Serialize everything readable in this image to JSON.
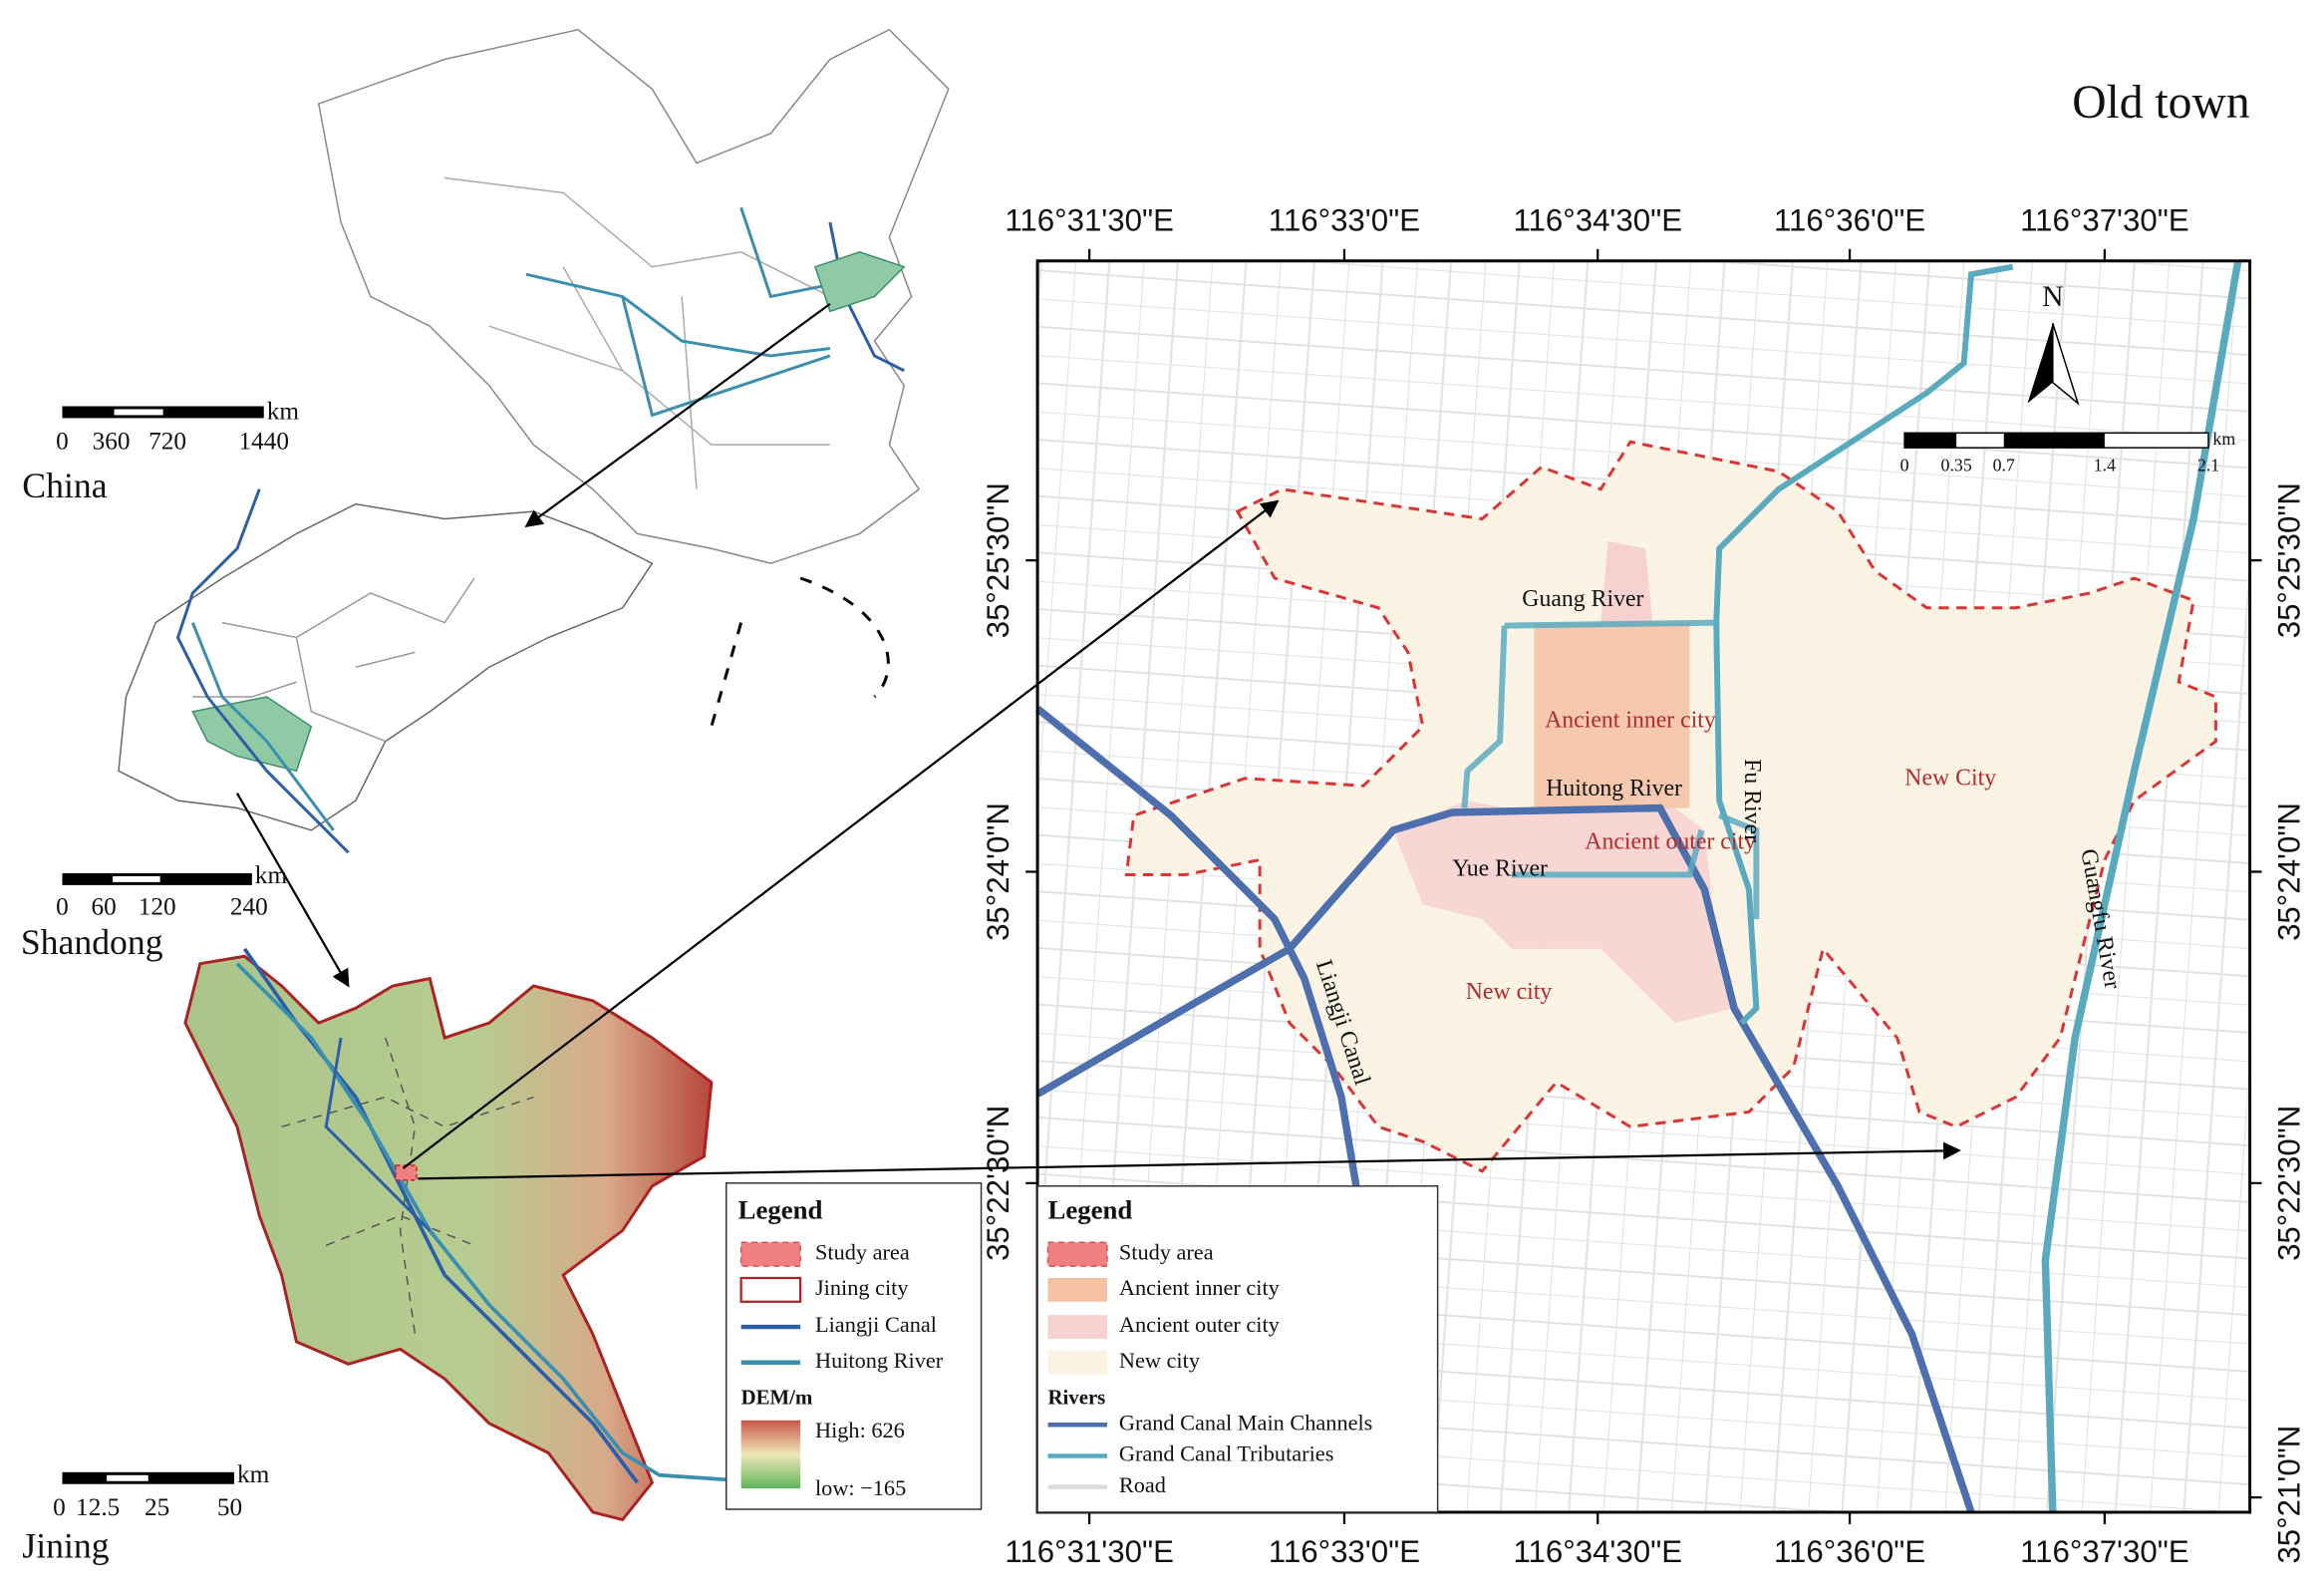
{
  "title": "Old town",
  "inset_maps": [
    {
      "label": "China",
      "scale_bar": {
        "unit": "km",
        "ticks": [
          "0",
          "360",
          "720",
          "1440"
        ]
      }
    },
    {
      "label": "Shandong",
      "scale_bar": {
        "unit": "km",
        "ticks": [
          "0",
          "60",
          "120",
          "240"
        ]
      }
    },
    {
      "label": "Jining",
      "scale_bar": {
        "unit": "km",
        "ticks": [
          "0",
          "12.5",
          "25",
          "50"
        ]
      }
    }
  ],
  "jining_legend": {
    "title": "Legend",
    "items": [
      "Study area",
      "Jining city",
      "Liangji Canal",
      "Huitong River"
    ],
    "dem_title": "DEM/m",
    "dem_high": "High: 626",
    "dem_low": "low: −165"
  },
  "main_map": {
    "north": "N",
    "scale_bar": {
      "unit": "km",
      "ticks": [
        "0",
        "0.35",
        "0.7",
        "1.4",
        "2.1"
      ]
    },
    "x_ticks": [
      "116°31'30\"E",
      "116°33'0\"E",
      "116°34'30\"E",
      "116°36'0\"E",
      "116°37'30\"E"
    ],
    "y_ticks": [
      "35°25'30\"N",
      "35°24'0\"N",
      "35°22'30\"N",
      "35°21'0\"N"
    ],
    "area_labels": [
      "Ancient inner city",
      "Ancient outer city",
      "New City",
      "New city"
    ],
    "river_labels": [
      "Guang River",
      "Huitong River",
      "Fu River",
      "Yue River",
      "Liangji Canal",
      "Guangfu River"
    ],
    "legend": {
      "title": "Legend",
      "items": [
        "Study area",
        "Ancient inner city",
        "Ancient outer city",
        "New city"
      ],
      "rivers_title": "Rivers",
      "river_items": [
        "Grand Canal Main Channels",
        "Grand Canal Tributaries",
        "Road"
      ]
    }
  }
}
